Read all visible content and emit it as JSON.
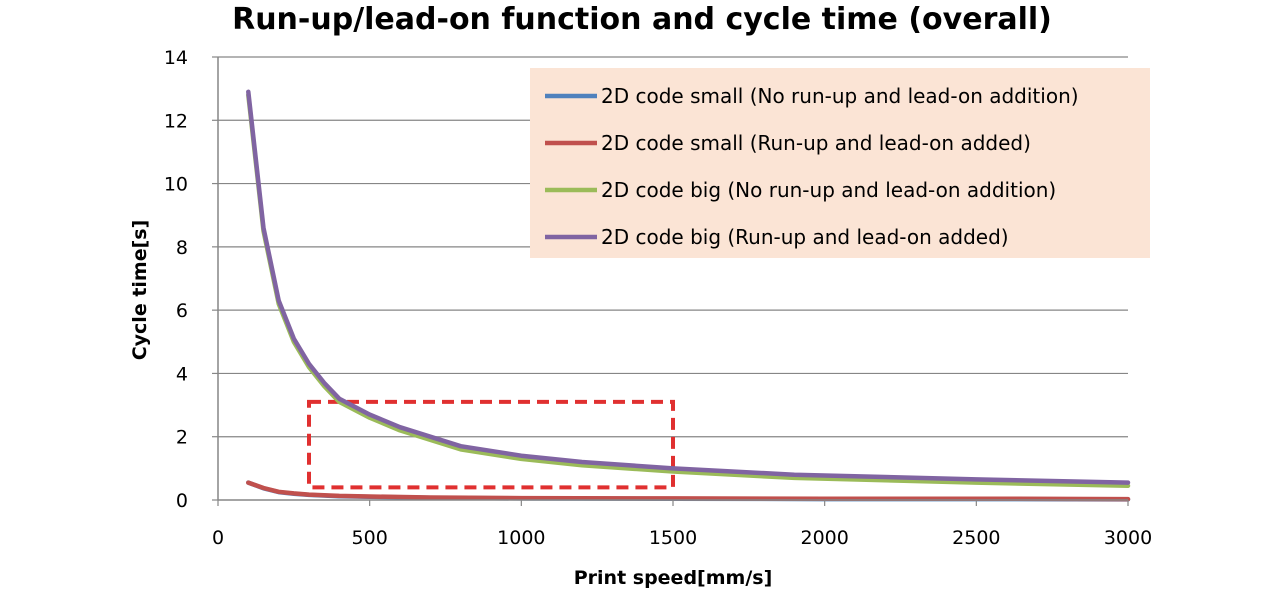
{
  "chart_data": {
    "type": "line",
    "title": "Run-up/lead-on function and cycle time (overall)",
    "xlabel": "Print speed[mm/s]",
    "ylabel": "Cycle time[s]",
    "xlim": [
      0,
      3000
    ],
    "ylim": [
      0,
      14
    ],
    "xticks": [
      0,
      500,
      1000,
      1500,
      2000,
      2500,
      3000
    ],
    "yticks": [
      0,
      2,
      4,
      6,
      8,
      10,
      12,
      14
    ],
    "grid": true,
    "legend_position": "top-right",
    "highlight_region": {
      "x": [
        300,
        1500
      ],
      "y": [
        0.4,
        3.1
      ],
      "color": "#e03030",
      "style": "dashed"
    },
    "series": [
      {
        "name": "2D code small (No run-up and lead-on addition)",
        "color": "#4f81bd",
        "x": [
          100,
          150,
          200,
          250,
          300,
          400,
          500,
          700,
          1000,
          1500,
          2000,
          2500,
          3000
        ],
        "y": [
          0.55,
          0.37,
          0.25,
          0.2,
          0.16,
          0.12,
          0.1,
          0.07,
          0.05,
          0.04,
          0.03,
          0.03,
          0.02
        ]
      },
      {
        "name": "2D code small (Run-up and lead-on added)",
        "color": "#c0504d",
        "x": [
          100,
          150,
          200,
          250,
          300,
          400,
          500,
          700,
          1000,
          1500,
          2000,
          2500,
          3000
        ],
        "y": [
          0.55,
          0.38,
          0.26,
          0.21,
          0.17,
          0.13,
          0.11,
          0.08,
          0.06,
          0.05,
          0.04,
          0.04,
          0.03
        ]
      },
      {
        "name": "2D code big (No run-up and lead-on addition)",
        "color": "#9bbb59",
        "x": [
          100,
          150,
          200,
          250,
          300,
          350,
          400,
          500,
          600,
          700,
          800,
          1000,
          1200,
          1500,
          1900,
          2500,
          3000
        ],
        "y": [
          12.8,
          8.5,
          6.2,
          5.0,
          4.2,
          3.6,
          3.1,
          2.6,
          2.2,
          1.9,
          1.6,
          1.3,
          1.1,
          0.9,
          0.7,
          0.55,
          0.45
        ]
      },
      {
        "name": "2D code big (Run-up and lead-on added)",
        "color": "#8064a2",
        "x": [
          100,
          150,
          200,
          250,
          300,
          350,
          400,
          500,
          600,
          700,
          800,
          1000,
          1200,
          1500,
          1900,
          2500,
          3000
        ],
        "y": [
          12.9,
          8.6,
          6.3,
          5.1,
          4.3,
          3.7,
          3.2,
          2.7,
          2.3,
          2.0,
          1.7,
          1.4,
          1.2,
          1.0,
          0.8,
          0.65,
          0.55
        ]
      }
    ]
  }
}
